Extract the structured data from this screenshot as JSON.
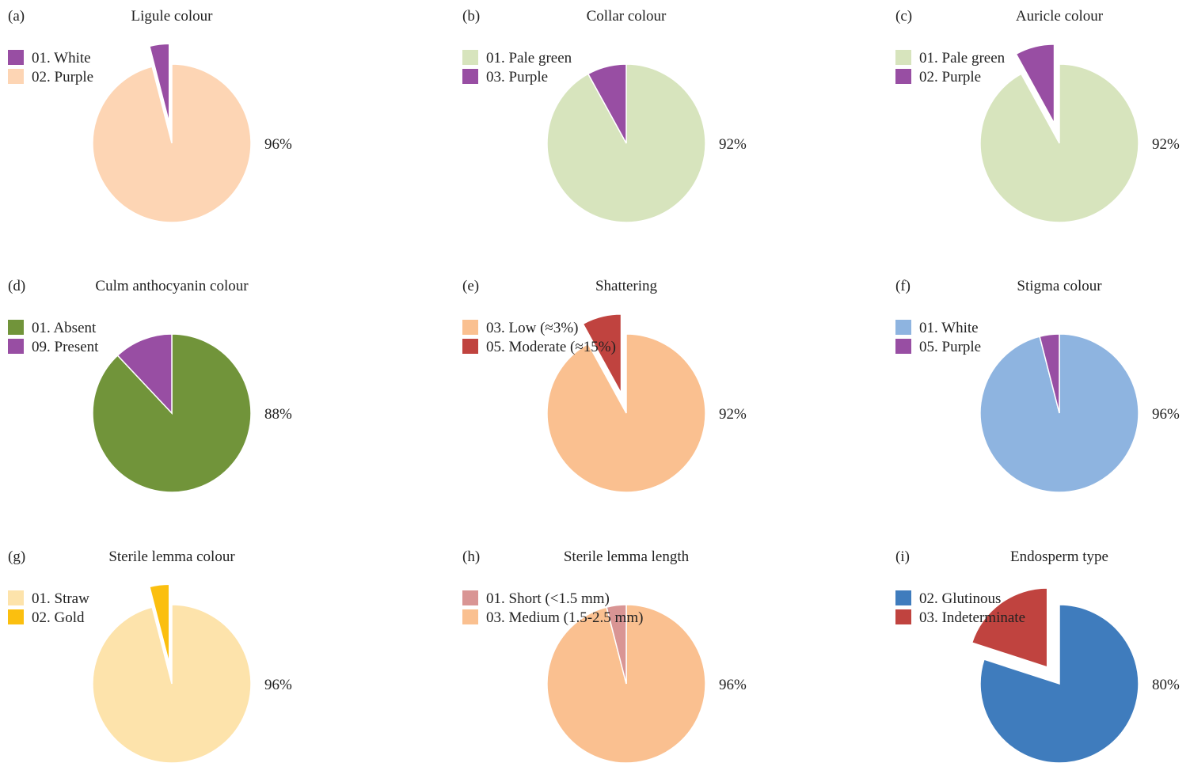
{
  "chart_data": [
    {
      "type": "pie",
      "panel_label": "(a)",
      "title": "Ligule colour",
      "slices": [
        {
          "label": "01. White",
          "value": 4,
          "color": "#984ea3",
          "exploded": true
        },
        {
          "label": "02. Purple",
          "value": 96,
          "color": "#fdd5b4",
          "exploded": false
        }
      ],
      "data_label": "96%",
      "legend": "top-left"
    },
    {
      "type": "pie",
      "panel_label": "(b)",
      "title": "Collar colour",
      "slices": [
        {
          "label": "01. Pale green",
          "value": 92,
          "color": "#d7e4bd",
          "exploded": false
        },
        {
          "label": "03. Purple",
          "value": 8,
          "color": "#984ea3",
          "exploded": false
        }
      ],
      "data_label": "92%",
      "legend": "top-left"
    },
    {
      "type": "pie",
      "panel_label": "(c)",
      "title": "Auricle colour",
      "slices": [
        {
          "label": "01. Pale green",
          "value": 92,
          "color": "#d7e4bd",
          "exploded": false
        },
        {
          "label": "02. Purple",
          "value": 8,
          "color": "#984ea3",
          "exploded": true
        }
      ],
      "data_label": "92%",
      "legend": "top-left"
    },
    {
      "type": "pie",
      "panel_label": "(d)",
      "title": "Culm anthocyanin colour",
      "slices": [
        {
          "label": "01. Absent",
          "value": 88,
          "color": "#71943a",
          "exploded": false
        },
        {
          "label": "09. Present",
          "value": 12,
          "color": "#984ea3",
          "exploded": false
        }
      ],
      "data_label": "88%",
      "legend": "top-left"
    },
    {
      "type": "pie",
      "panel_label": "(e)",
      "title": "Shattering",
      "slices": [
        {
          "label": "03. Low (≈3%)",
          "value": 92,
          "color": "#fac090",
          "exploded": false
        },
        {
          "label": "05. Moderate (≈15%)",
          "value": 8,
          "color": "#c0433f",
          "exploded": true
        }
      ],
      "data_label": "92%",
      "legend": "top-left"
    },
    {
      "type": "pie",
      "panel_label": "(f)",
      "title": "Stigma colour",
      "slices": [
        {
          "label": "01. White",
          "value": 96,
          "color": "#8eb4e0",
          "exploded": false
        },
        {
          "label": "05. Purple",
          "value": 4,
          "color": "#984ea3",
          "exploded": false
        }
      ],
      "data_label": "96%",
      "legend": "top-left"
    },
    {
      "type": "pie",
      "panel_label": "(g)",
      "title": "Sterile lemma colour",
      "slices": [
        {
          "label": "01. Straw",
          "value": 96,
          "color": "#fde3ab",
          "exploded": false
        },
        {
          "label": "02. Gold",
          "value": 4,
          "color": "#fbbf0f",
          "exploded": true
        }
      ],
      "data_label": "96%",
      "legend": "top-left"
    },
    {
      "type": "pie",
      "panel_label": "(h)",
      "title": "Sterile lemma length",
      "slices": [
        {
          "label": "01. Short (<1.5 mm)",
          "value": 4,
          "color": "#d99594",
          "exploded": false
        },
        {
          "label": "03. Medium (1.5-2.5 mm)",
          "value": 96,
          "color": "#fac090",
          "exploded": false
        }
      ],
      "data_label": "96%",
      "legend": "top-left"
    },
    {
      "type": "pie",
      "panel_label": "(i)",
      "title": "Endosperm type",
      "slices": [
        {
          "label": "02. Glutinous",
          "value": 80,
          "color": "#3f7cbd",
          "exploded": false
        },
        {
          "label": "03. Indeterminate",
          "value": 20,
          "color": "#c0433f",
          "exploded": true
        }
      ],
      "data_label": "80%",
      "legend": "top-left"
    }
  ]
}
